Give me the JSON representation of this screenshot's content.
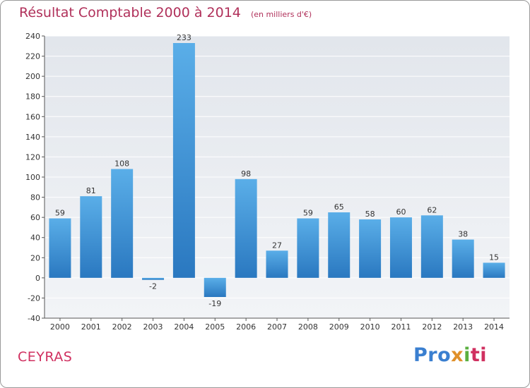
{
  "chart_data": {
    "type": "bar",
    "title": "Résultat Comptable 2000 à 2014",
    "unit_label": "(en milliers d'€)",
    "categories": [
      "2000",
      "2001",
      "2002",
      "2003",
      "2004",
      "2005",
      "2006",
      "2007",
      "2008",
      "2009",
      "2010",
      "2011",
      "2012",
      "2013",
      "2014"
    ],
    "values": [
      59,
      81,
      108,
      -2,
      233,
      -19,
      98,
      27,
      59,
      65,
      58,
      60,
      62,
      38,
      15
    ],
    "value_labels": [
      "59",
      "81",
      "108",
      "-2",
      "233",
      "-19",
      "98",
      "27",
      "59",
      "65",
      "58",
      "60",
      "62",
      "38",
      "15"
    ],
    "ylim": [
      -40,
      240
    ],
    "yticks": [
      -40,
      -20,
      0,
      20,
      40,
      60,
      80,
      100,
      120,
      140,
      160,
      180,
      200,
      220,
      240
    ],
    "grid": true,
    "bar_color": "#4a9fe0"
  },
  "location": "CEYRAS",
  "logo": {
    "p1": "Pro",
    "p2": "x",
    "p3": "i",
    "p4": "ti"
  }
}
